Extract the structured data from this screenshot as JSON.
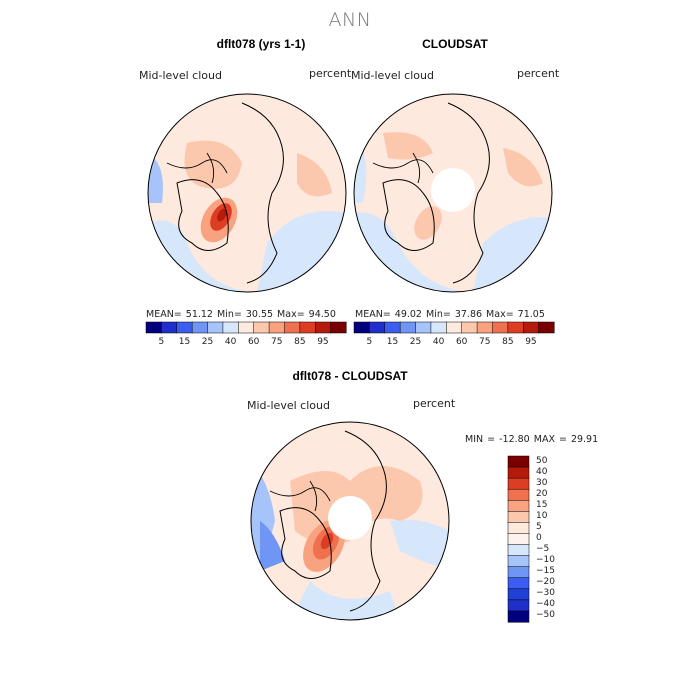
{
  "title": "ANN",
  "panels": [
    {
      "title": "dflt078 (yrs 1-1)",
      "left_label": "Mid-level cloud",
      "right_label": "percent",
      "stats": "MEAN=  51.12   Min=   30.55   Max=   94.50",
      "colorbar": {
        "ticks": [
          "5",
          "15",
          "25",
          "40",
          "60",
          "75",
          "85",
          "95"
        ],
        "colors": [
          "#00007f",
          "#1f2fc9",
          "#3b5ef0",
          "#6f95f5",
          "#a7c4fa",
          "#d6e6fb",
          "#fde9dd",
          "#fcc8ad",
          "#f9a27f",
          "#f0714f",
          "#dd3d22",
          "#b51a0c",
          "#7a0000"
        ]
      }
    },
    {
      "title": "CLOUDSAT",
      "left_label": "Mid-level cloud",
      "right_label": "percent",
      "stats": "MEAN=  49.02   Min=   37.86   Max=   71.05",
      "colorbar": {
        "ticks": [
          "5",
          "15",
          "25",
          "40",
          "60",
          "75",
          "85",
          "95"
        ],
        "colors": [
          "#00007f",
          "#1f2fc9",
          "#3b5ef0",
          "#6f95f5",
          "#a7c4fa",
          "#d6e6fb",
          "#fde9dd",
          "#fcc8ad",
          "#f9a27f",
          "#f0714f",
          "#dd3d22",
          "#b51a0c",
          "#7a0000"
        ]
      }
    }
  ],
  "difference": {
    "title": "dflt078 - CLOUDSAT",
    "left_label": "Mid-level cloud",
    "right_label": "percent",
    "stats": "MIN = -12.80 MAX =   29.91",
    "colorbar": {
      "ticks": [
        "50",
        "40",
        "30",
        "20",
        "15",
        "10",
        "5",
        "0",
        "−5",
        "−10",
        "−15",
        "−20",
        "−30",
        "−40",
        "−50"
      ],
      "colors": [
        "#7a0000",
        "#b51a0c",
        "#dd3d22",
        "#f0714f",
        "#f9a27f",
        "#fcc8ad",
        "#fde9dd",
        "#fdf3ec",
        "#d6e6fb",
        "#a7c4fa",
        "#6f95f5",
        "#3b5ef0",
        "#2040d8",
        "#1f2fc9",
        "#00007f"
      ]
    }
  },
  "map_colors": {
    "light_blue": "#d6e6fb",
    "blue": "#a7c4fa",
    "light_red": "#fcc8ad",
    "cream": "#fde9dd",
    "red": "#f0714f",
    "dark_red": "#b51a0c"
  }
}
